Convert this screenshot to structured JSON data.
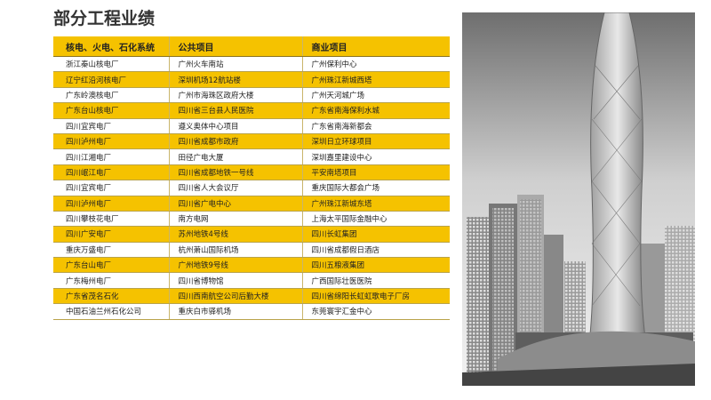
{
  "header": {
    "title": "部分工程业绩"
  },
  "table": {
    "columns": [
      "核电、火电、石化系统",
      "公共项目",
      "商业项目"
    ],
    "rows": [
      [
        "浙江秦山核电厂",
        "广州火车南站",
        "广州保利中心"
      ],
      [
        "辽宁红沿河核电厂",
        "深圳机场12航站楼",
        "广州珠江新城西塔"
      ],
      [
        "广东岭澳核电厂",
        "广州市海珠区政府大楼",
        "广州天河城广场"
      ],
      [
        "广东台山核电厂",
        "四川省三台县人民医院",
        "广东省南海保利水城"
      ],
      [
        "四川宜宾电厂",
        "遵义奥体中心项目",
        "广东省南海新都会"
      ],
      [
        "四川泸州电厂",
        "四川省成都市政府",
        "深圳日立环球项目"
      ],
      [
        "四川江湘电厂",
        "田径广电大厦",
        "深圳嘉里建设中心"
      ],
      [
        "四川岷江电厂",
        "四川省成都地铁一号线",
        "平安南塔项目"
      ],
      [
        "四川宜宾电厂",
        "四川省人大会议厅",
        "重庆国际大都会广场"
      ],
      [
        "四川泸州电厂",
        "四川省广电中心",
        "广州珠江新城东塔"
      ],
      [
        "四川攀枝花电厂",
        "南方电网",
        "上海太平国际金融中心"
      ],
      [
        "四川广安电厂",
        "苏州地铁4号线",
        "四川长虹集团"
      ],
      [
        "重庆万盛电厂",
        "杭州萧山国际机场",
        "四川省成都假日酒店"
      ],
      [
        "广东台山电厂",
        "广州地铁9号线",
        "四川五粮液集团"
      ],
      [
        "广东梅州电厂",
        "四川省博物馆",
        "广西国际壮医医院"
      ],
      [
        "广东省茂名石化",
        "四川西南航空公司后勤大楼",
        "四川省绵阳长虹虹歌电子厂房"
      ],
      [
        "中国石油兰州石化公司",
        "重庆白市驿机场",
        "东莞寰宇汇金中心"
      ]
    ]
  }
}
